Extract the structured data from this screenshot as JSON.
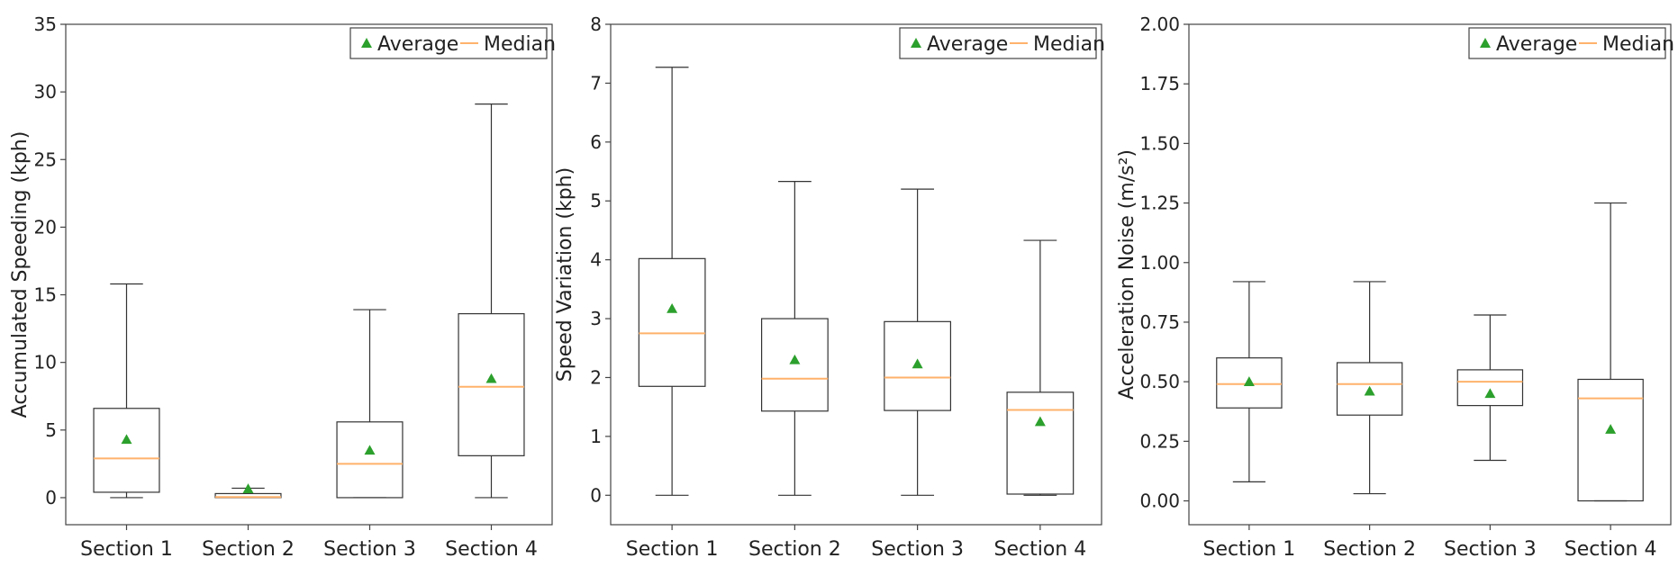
{
  "colors": {
    "average": "#2ca02c",
    "median": "#ffb26b",
    "box": "#333333",
    "axis": "#444444"
  },
  "legend": {
    "average": "Average",
    "median": "Median"
  },
  "chart_data": [
    {
      "type": "box",
      "ylabel": "Accumulated Speeding (kph)",
      "ylim": [
        -2,
        35
      ],
      "yticks": [
        0,
        5,
        10,
        15,
        20,
        25,
        30,
        35
      ],
      "ytick_labels": [
        "0",
        "5",
        "10",
        "15",
        "20",
        "25",
        "30",
        "35"
      ],
      "categories": [
        "Section 1",
        "Section 2",
        "Section 3",
        "Section 4"
      ],
      "boxes": [
        {
          "whisker_low": 0,
          "q1": 0.4,
          "median": 2.9,
          "q3": 6.6,
          "whisker_high": 15.8,
          "mean": 4.3
        },
        {
          "whisker_low": 0,
          "q1": 0,
          "median": 0.05,
          "q3": 0.3,
          "whisker_high": 0.7,
          "mean": 0.65
        },
        {
          "whisker_low": 0,
          "q1": 0,
          "median": 2.5,
          "q3": 5.6,
          "whisker_high": 13.9,
          "mean": 3.5
        },
        {
          "whisker_low": 0,
          "q1": 3.1,
          "median": 8.2,
          "q3": 13.6,
          "whisker_high": 29.1,
          "mean": 8.8
        }
      ],
      "legend_position": "top-right"
    },
    {
      "type": "box",
      "ylabel": "Speed Variation (kph)",
      "ylim": [
        -0.5,
        8
      ],
      "yticks": [
        0,
        1,
        2,
        3,
        4,
        5,
        6,
        7,
        8
      ],
      "ytick_labels": [
        "0",
        "1",
        "2",
        "3",
        "4",
        "5",
        "6",
        "7",
        "8"
      ],
      "categories": [
        "Section 1",
        "Section 2",
        "Section 3",
        "Section 4"
      ],
      "boxes": [
        {
          "whisker_low": 0,
          "q1": 1.85,
          "median": 2.75,
          "q3": 4.02,
          "whisker_high": 7.27,
          "mean": 3.17
        },
        {
          "whisker_low": 0,
          "q1": 1.43,
          "median": 1.98,
          "q3": 3.0,
          "whisker_high": 5.33,
          "mean": 2.3
        },
        {
          "whisker_low": 0,
          "q1": 1.44,
          "median": 2.0,
          "q3": 2.95,
          "whisker_high": 5.2,
          "mean": 2.23
        },
        {
          "whisker_low": 0,
          "q1": 0.02,
          "median": 1.45,
          "q3": 1.75,
          "whisker_high": 4.33,
          "mean": 1.25
        }
      ],
      "legend_position": "top-right"
    },
    {
      "type": "box",
      "ylabel": "Acceleration Noise (m/s²)",
      "ylim": [
        -0.1,
        2.0
      ],
      "yticks": [
        0,
        0.25,
        0.5,
        0.75,
        1.0,
        1.25,
        1.5,
        1.75,
        2.0
      ],
      "ytick_labels": [
        "0.00",
        "0.25",
        "0.50",
        "0.75",
        "1.00",
        "1.25",
        "1.50",
        "1.75",
        "2.00"
      ],
      "categories": [
        "Section 1",
        "Section 2",
        "Section 3",
        "Section 4"
      ],
      "boxes": [
        {
          "whisker_low": 0.08,
          "q1": 0.39,
          "median": 0.49,
          "q3": 0.6,
          "whisker_high": 0.92,
          "mean": 0.5
        },
        {
          "whisker_low": 0.03,
          "q1": 0.36,
          "median": 0.49,
          "q3": 0.58,
          "whisker_high": 0.92,
          "mean": 0.46
        },
        {
          "whisker_low": 0.17,
          "q1": 0.4,
          "median": 0.5,
          "q3": 0.55,
          "whisker_high": 0.78,
          "mean": 0.45
        },
        {
          "whisker_low": 0,
          "q1": 0,
          "median": 0.43,
          "q3": 0.51,
          "whisker_high": 1.25,
          "mean": 0.3
        }
      ],
      "legend_position": "top-right"
    }
  ]
}
